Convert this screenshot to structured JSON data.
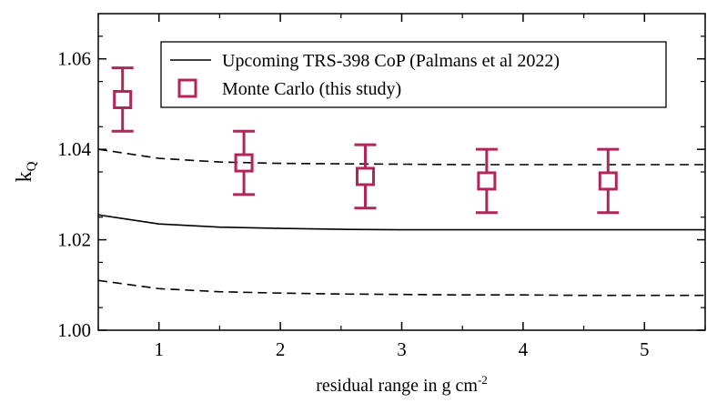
{
  "chart_data": {
    "type": "line",
    "title": "",
    "xlabel": "residual range in g cm",
    "xlabel_sup": "-2",
    "ylabel": "k",
    "ylabel_sub": "Q",
    "xlim": [
      0.5,
      5.5
    ],
    "ylim": [
      1.0,
      1.07
    ],
    "xticks": [
      1,
      2,
      3,
      4,
      5
    ],
    "xtick_labels": [
      "1",
      "2",
      "3",
      "4",
      "5"
    ],
    "yticks": [
      1.0,
      1.02,
      1.04,
      1.06
    ],
    "ytick_labels": [
      "1.00",
      "1.02",
      "1.04",
      "1.06"
    ],
    "grid": false,
    "legend_position": "top-right",
    "colors": {
      "markers": "#b3245a",
      "lines": "#000000"
    },
    "series": [
      {
        "name": "Upcoming TRS-398 CoP (Palmans et al 2022)",
        "style": "solid",
        "x": [
          0.5,
          1.0,
          1.5,
          2.0,
          2.5,
          3.0,
          3.5,
          4.0,
          4.5,
          5.0,
          5.5
        ],
        "y": [
          1.0255,
          1.0235,
          1.0228,
          1.0225,
          1.0223,
          1.0222,
          1.0222,
          1.0222,
          1.0222,
          1.0222,
          1.0222
        ]
      },
      {
        "role": "upper uncertainty bound",
        "style": "dashed",
        "x": [
          0.5,
          1.0,
          1.5,
          2.0,
          2.5,
          3.0,
          3.5,
          4.0,
          4.5,
          5.0,
          5.5
        ],
        "y": [
          1.04,
          1.038,
          1.0372,
          1.0369,
          1.0368,
          1.0367,
          1.0366,
          1.0366,
          1.0366,
          1.0366,
          1.0366
        ]
      },
      {
        "role": "lower uncertainty bound",
        "style": "dashed",
        "x": [
          0.5,
          1.0,
          1.5,
          2.0,
          2.5,
          3.0,
          3.5,
          4.0,
          4.5,
          5.0,
          5.5
        ],
        "y": [
          1.011,
          1.0092,
          1.0085,
          1.0082,
          1.008,
          1.0079,
          1.0078,
          1.0078,
          1.0077,
          1.0077,
          1.0077
        ]
      },
      {
        "name": "Monte Carlo (this study)",
        "style": "markers",
        "marker": "open-square",
        "x": [
          0.7,
          1.7,
          2.7,
          3.7,
          4.7
        ],
        "y": [
          1.051,
          1.037,
          1.034,
          1.033,
          1.033
        ],
        "error": [
          0.007,
          0.007,
          0.007,
          0.007,
          0.007
        ]
      }
    ],
    "legend": [
      {
        "label": "Upcoming TRS-398 CoP (Palmans et al 2022)",
        "kind": "line"
      },
      {
        "label": "Monte Carlo (this study)",
        "kind": "marker"
      }
    ]
  }
}
